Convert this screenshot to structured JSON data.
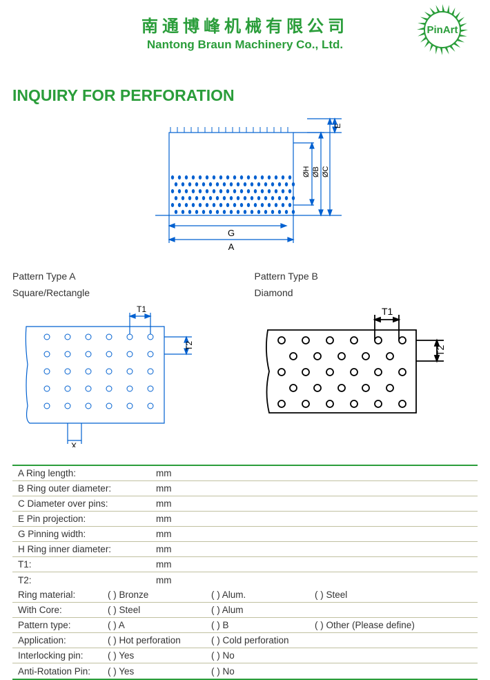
{
  "company": {
    "name_cn": "南通博峰机械有限公司",
    "name_en": "Nantong Braun Machinery Co., Ltd.",
    "logo_text": "PinArt",
    "logo_color": "#2a9d3a"
  },
  "title": "INQUIRY FOR PERFORATION",
  "main_diagram": {
    "labels": {
      "A": "A",
      "G": "G",
      "E": "E",
      "OH": "ØH",
      "OB": "ØB",
      "OC": "ØC"
    },
    "colors": {
      "line": "#0060d0",
      "text": "#000000"
    }
  },
  "patterns": {
    "a": {
      "title1": "Pattern Type A",
      "title2": "Square/Rectangle",
      "labels": {
        "T1": "T1",
        "T2": "T2",
        "X": "X"
      },
      "rows": 5,
      "cols": 6
    },
    "b": {
      "title1": "Pattern Type B",
      "title2": "Diamond",
      "labels": {
        "T1": "T1",
        "T2": "T2"
      },
      "rows": 5,
      "cols": 7
    }
  },
  "dim_rows": [
    {
      "label": "A Ring length:",
      "unit": "mm"
    },
    {
      "label": "B Ring outer diameter:",
      "unit": "mm"
    },
    {
      "label": "C Diameter over pins:",
      "unit": "mm"
    },
    {
      "label": "E Pin projection:",
      "unit": "mm"
    },
    {
      "label": "G Pinning width:",
      "unit": "mm"
    },
    {
      "label": "H Ring inner diameter:",
      "unit": "mm"
    },
    {
      "label": "T1:",
      "unit": "mm"
    },
    {
      "label": "T2:",
      "unit": "mm"
    }
  ],
  "opt_rows": [
    {
      "label": "Ring material:",
      "o1": "( ) Bronze",
      "o2": "( ) Alum.",
      "o3": "( ) Steel"
    },
    {
      "label": "With Core:",
      "o1": "( ) Steel",
      "o2": "( ) Alum",
      "o3": ""
    },
    {
      "label": "Pattern type:",
      "o1": "( ) A",
      "o2": "( ) B",
      "o3": "( ) Other (Please define)"
    },
    {
      "label": "Application:",
      "o1": "( ) Hot perforation",
      "o2": "( ) Cold perforation",
      "o3": ""
    },
    {
      "label": "Interlocking pin:",
      "o1": "( ) Yes",
      "o2": "( ) No",
      "o3": ""
    },
    {
      "label": "Anti-Rotation Pin:",
      "o1": "( ) Yes",
      "o2": "( ) No",
      "o3": ""
    }
  ]
}
